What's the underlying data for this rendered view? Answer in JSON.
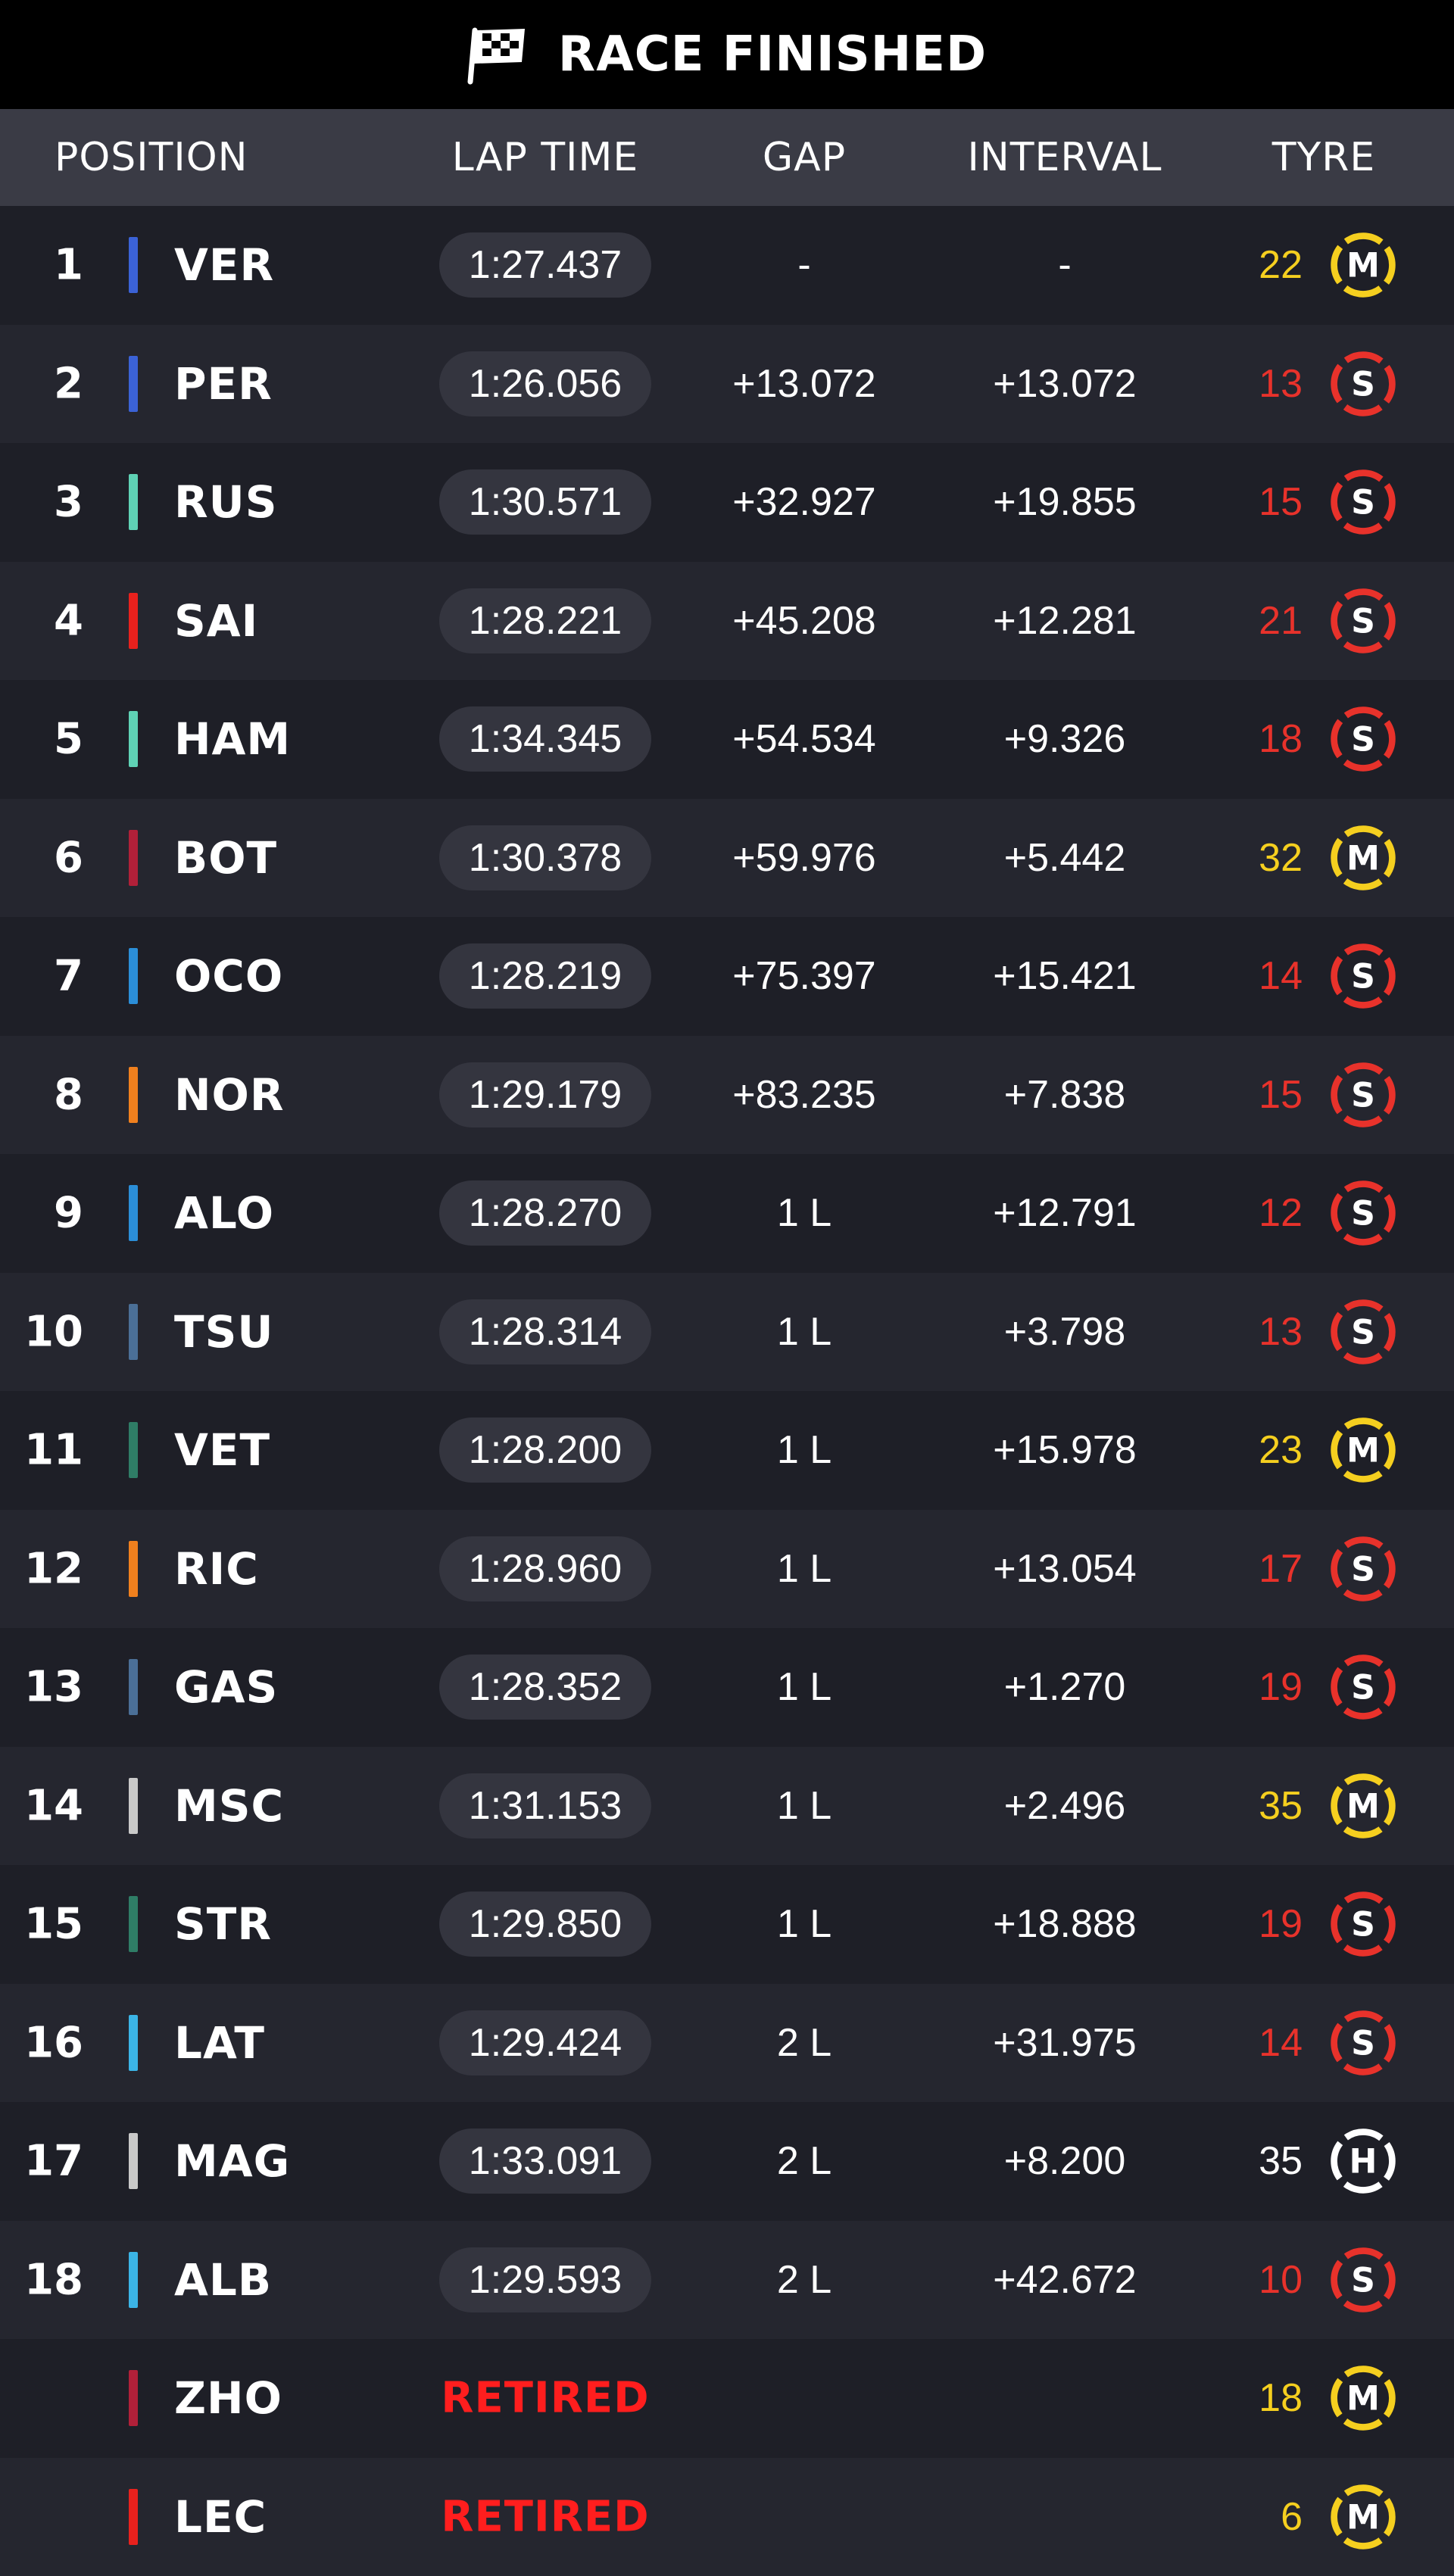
{
  "title": "RACE FINISHED",
  "colors": {
    "title_bg": "#000000",
    "header_bg": "#3a3b45",
    "row_bg_even": "#1e1f27",
    "row_bg_odd": "#25262f",
    "pill_bg": "#34353f",
    "retired": "#ff1e1e",
    "tyre_soft": "#e8322b",
    "tyre_medium": "#f5cf1f",
    "tyre_hard": "#ffffff"
  },
  "columns": {
    "position": "POSITION",
    "lap_time": "LAP TIME",
    "gap": "GAP",
    "interval": "INTERVAL",
    "tyre": "TYRE"
  },
  "rows": [
    {
      "pos": "1",
      "driver": "VER",
      "team_color": "#3b62d6",
      "lap_time": "1:27.437",
      "gap": "-",
      "interval": "-",
      "tyre_laps": "22",
      "tyre": "M"
    },
    {
      "pos": "2",
      "driver": "PER",
      "team_color": "#3b62d6",
      "lap_time": "1:26.056",
      "gap": "+13.072",
      "interval": "+13.072",
      "tyre_laps": "13",
      "tyre": "S"
    },
    {
      "pos": "3",
      "driver": "RUS",
      "team_color": "#5fd2b5",
      "lap_time": "1:30.571",
      "gap": "+32.927",
      "interval": "+19.855",
      "tyre_laps": "15",
      "tyre": "S"
    },
    {
      "pos": "4",
      "driver": "SAI",
      "team_color": "#e8211d",
      "lap_time": "1:28.221",
      "gap": "+45.208",
      "interval": "+12.281",
      "tyre_laps": "21",
      "tyre": "S"
    },
    {
      "pos": "5",
      "driver": "HAM",
      "team_color": "#5fd2b5",
      "lap_time": "1:34.345",
      "gap": "+54.534",
      "interval": "+9.326",
      "tyre_laps": "18",
      "tyre": "S"
    },
    {
      "pos": "6",
      "driver": "BOT",
      "team_color": "#b12039",
      "lap_time": "1:30.378",
      "gap": "+59.976",
      "interval": "+5.442",
      "tyre_laps": "32",
      "tyre": "M"
    },
    {
      "pos": "7",
      "driver": "OCO",
      "team_color": "#2b8ed8",
      "lap_time": "1:28.219",
      "gap": "+75.397",
      "interval": "+15.421",
      "tyre_laps": "14",
      "tyre": "S"
    },
    {
      "pos": "8",
      "driver": "NOR",
      "team_color": "#f0801e",
      "lap_time": "1:29.179",
      "gap": "+83.235",
      "interval": "+7.838",
      "tyre_laps": "15",
      "tyre": "S"
    },
    {
      "pos": "9",
      "driver": "ALO",
      "team_color": "#2b8ed8",
      "lap_time": "1:28.270",
      "gap": "1 L",
      "interval": "+12.791",
      "tyre_laps": "12",
      "tyre": "S"
    },
    {
      "pos": "10",
      "driver": "TSU",
      "team_color": "#4b6f97",
      "lap_time": "1:28.314",
      "gap": "1 L",
      "interval": "+3.798",
      "tyre_laps": "13",
      "tyre": "S"
    },
    {
      "pos": "11",
      "driver": "VET",
      "team_color": "#2f7d66",
      "lap_time": "1:28.200",
      "gap": "1 L",
      "interval": "+15.978",
      "tyre_laps": "23",
      "tyre": "M"
    },
    {
      "pos": "12",
      "driver": "RIC",
      "team_color": "#f0801e",
      "lap_time": "1:28.960",
      "gap": "1 L",
      "interval": "+13.054",
      "tyre_laps": "17",
      "tyre": "S"
    },
    {
      "pos": "13",
      "driver": "GAS",
      "team_color": "#4b6f97",
      "lap_time": "1:28.352",
      "gap": "1 L",
      "interval": "+1.270",
      "tyre_laps": "19",
      "tyre": "S"
    },
    {
      "pos": "14",
      "driver": "MSC",
      "team_color": "#c9c9c9",
      "lap_time": "1:31.153",
      "gap": "1 L",
      "interval": "+2.496",
      "tyre_laps": "35",
      "tyre": "M"
    },
    {
      "pos": "15",
      "driver": "STR",
      "team_color": "#2f7d66",
      "lap_time": "1:29.850",
      "gap": "1 L",
      "interval": "+18.888",
      "tyre_laps": "19",
      "tyre": "S"
    },
    {
      "pos": "16",
      "driver": "LAT",
      "team_color": "#3bb4e6",
      "lap_time": "1:29.424",
      "gap": "2 L",
      "interval": "+31.975",
      "tyre_laps": "14",
      "tyre": "S"
    },
    {
      "pos": "17",
      "driver": "MAG",
      "team_color": "#c9c9c9",
      "lap_time": "1:33.091",
      "gap": "2 L",
      "interval": "+8.200",
      "tyre_laps": "35",
      "tyre": "H"
    },
    {
      "pos": "18",
      "driver": "ALB",
      "team_color": "#3bb4e6",
      "lap_time": "1:29.593",
      "gap": "2 L",
      "interval": "+42.672",
      "tyre_laps": "10",
      "tyre": "S"
    },
    {
      "pos": "",
      "driver": "ZHO",
      "team_color": "#b12039",
      "lap_time": "",
      "status": "RETIRED",
      "gap": "",
      "interval": "",
      "tyre_laps": "18",
      "tyre": "M"
    },
    {
      "pos": "",
      "driver": "LEC",
      "team_color": "#e8211d",
      "lap_time": "",
      "status": "RETIRED",
      "gap": "",
      "interval": "",
      "tyre_laps": "6",
      "tyre": "M"
    }
  ]
}
